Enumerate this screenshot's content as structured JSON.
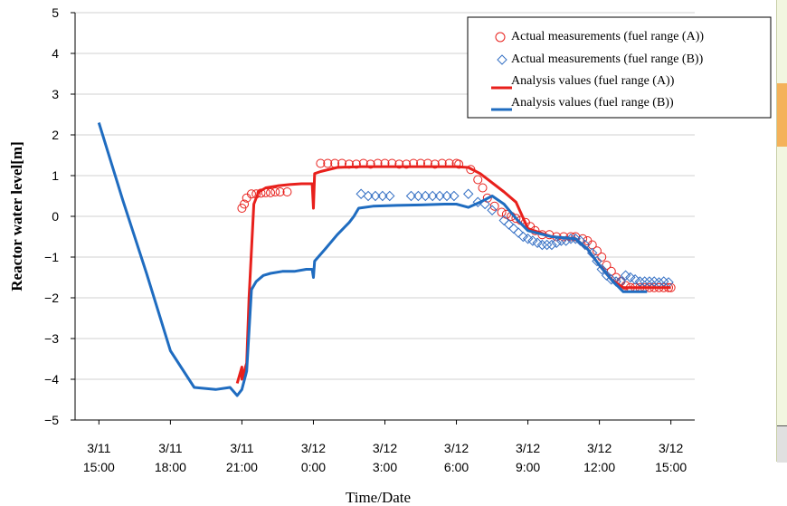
{
  "chart_data": {
    "type": "line",
    "title": "",
    "xlabel": "Time/Date",
    "ylabel": "Reactor water level[m]",
    "xlim": [
      "3/11 14:00",
      "3/12 16:00"
    ],
    "ylim": [
      -5,
      5
    ],
    "y_ticks": [
      5,
      4,
      3,
      2,
      1,
      0,
      -1,
      -2,
      -3,
      -4,
      -5
    ],
    "y_tick_labels": [
      "5",
      "4",
      "3",
      "2",
      "1",
      "0",
      "−1",
      "−2",
      "−3",
      "−4",
      "−5"
    ],
    "x_ticks": [
      {
        "date": "3/11",
        "time": "15:00",
        "hours": 1
      },
      {
        "date": "3/11",
        "time": "18:00",
        "hours": 4
      },
      {
        "date": "3/11",
        "time": "21:00",
        "hours": 7
      },
      {
        "date": "3/12",
        "time": "0:00",
        "hours": 10
      },
      {
        "date": "3/12",
        "time": "3:00",
        "hours": 13
      },
      {
        "date": "3/12",
        "time": "6:00",
        "hours": 16
      },
      {
        "date": "3/12",
        "time": "9:00",
        "hours": 19
      },
      {
        "date": "3/12",
        "time": "12:00",
        "hours": 22
      },
      {
        "date": "3/12",
        "time": "15:00",
        "hours": 25
      }
    ],
    "grid": "horizontal",
    "legend_position": "top-right",
    "series": [
      {
        "name": "Actual measurements (fuel range (A))",
        "kind": "scatter",
        "marker": "circle",
        "color": "#e8201c",
        "x": [
          7.0,
          7.1,
          7.2,
          7.4,
          7.6,
          7.8,
          8.0,
          8.2,
          8.4,
          8.6,
          8.9,
          10.3,
          10.6,
          10.9,
          11.2,
          11.5,
          11.8,
          12.1,
          12.4,
          12.7,
          13.0,
          13.3,
          13.6,
          13.9,
          14.2,
          14.5,
          14.8,
          15.1,
          15.4,
          15.7,
          16.0,
          16.1,
          16.6,
          16.9,
          17.1,
          17.3,
          17.6,
          17.9,
          18.1,
          18.3,
          18.5,
          18.7,
          18.9,
          19.1,
          19.3,
          19.6,
          19.9,
          20.2,
          20.5,
          20.8,
          21.0,
          21.3,
          21.5,
          21.7,
          21.9,
          22.1,
          22.3,
          22.5,
          22.7,
          22.9,
          23.1,
          23.3,
          23.5,
          23.7,
          23.9,
          24.1,
          24.3,
          24.5,
          24.7,
          24.9,
          25.0
        ],
        "y": [
          0.2,
          0.3,
          0.45,
          0.55,
          0.55,
          0.57,
          0.58,
          0.58,
          0.6,
          0.6,
          0.6,
          1.3,
          1.3,
          1.3,
          1.3,
          1.28,
          1.28,
          1.3,
          1.28,
          1.3,
          1.3,
          1.3,
          1.28,
          1.28,
          1.3,
          1.3,
          1.3,
          1.28,
          1.3,
          1.3,
          1.3,
          1.28,
          1.15,
          0.9,
          0.7,
          0.45,
          0.25,
          0.1,
          0.05,
          0.0,
          -0.05,
          -0.1,
          -0.15,
          -0.25,
          -0.35,
          -0.45,
          -0.45,
          -0.5,
          -0.5,
          -0.5,
          -0.5,
          -0.55,
          -0.6,
          -0.7,
          -0.85,
          -1.0,
          -1.2,
          -1.35,
          -1.5,
          -1.6,
          -1.7,
          -1.75,
          -1.75,
          -1.75,
          -1.75,
          -1.75,
          -1.75,
          -1.75,
          -1.75,
          -1.75,
          -1.75
        ]
      },
      {
        "name": "Actual measurements (fuel range (B))",
        "kind": "scatter",
        "marker": "diamond",
        "color": "#3570c4",
        "x": [
          12.0,
          12.3,
          12.6,
          12.9,
          13.2,
          14.1,
          14.4,
          14.7,
          15.0,
          15.3,
          15.6,
          15.9,
          16.5,
          16.9,
          17.2,
          17.5,
          18.0,
          18.2,
          18.4,
          18.6,
          18.8,
          19.0,
          19.2,
          19.4,
          19.6,
          19.8,
          20.0,
          20.2,
          20.4,
          20.6,
          20.8,
          21.0,
          21.2,
          21.4,
          21.7,
          21.9,
          22.1,
          22.3,
          22.5,
          22.7,
          22.9,
          23.1,
          23.3,
          23.5,
          23.7,
          23.9,
          24.1,
          24.3,
          24.5,
          24.7,
          24.9
        ],
        "y": [
          0.55,
          0.5,
          0.5,
          0.5,
          0.5,
          0.5,
          0.5,
          0.5,
          0.5,
          0.5,
          0.5,
          0.5,
          0.55,
          0.35,
          0.3,
          0.15,
          -0.1,
          -0.2,
          -0.3,
          -0.4,
          -0.5,
          -0.55,
          -0.6,
          -0.65,
          -0.7,
          -0.7,
          -0.7,
          -0.65,
          -0.6,
          -0.6,
          -0.55,
          -0.55,
          -0.6,
          -0.7,
          -0.9,
          -1.1,
          -1.3,
          -1.45,
          -1.55,
          -1.6,
          -1.6,
          -1.45,
          -1.5,
          -1.55,
          -1.6,
          -1.6,
          -1.6,
          -1.6,
          -1.62,
          -1.6,
          -1.62
        ]
      },
      {
        "name": "Analysis values (fuel range (A))",
        "kind": "line",
        "color": "#e8201c",
        "x": [
          6.8,
          7.0,
          7.0,
          7.2,
          7.3,
          7.5,
          7.7,
          8.0,
          8.5,
          9.0,
          9.5,
          9.95,
          10.0,
          10.05,
          10.3,
          11.0,
          12.0,
          13.0,
          14.0,
          15.0,
          16.0,
          16.5,
          17.0,
          18.0,
          18.5,
          19.0,
          20.0,
          21.0,
          21.5,
          22.0,
          22.5,
          23.0,
          24.0,
          25.0
        ],
        "y": [
          -4.1,
          -3.7,
          -4.0,
          -3.6,
          -2.0,
          0.3,
          0.6,
          0.7,
          0.75,
          0.78,
          0.8,
          0.8,
          0.2,
          1.05,
          1.1,
          1.2,
          1.22,
          1.22,
          1.22,
          1.22,
          1.22,
          1.2,
          1.05,
          0.6,
          0.35,
          -0.3,
          -0.5,
          -0.55,
          -0.8,
          -1.2,
          -1.55,
          -1.75,
          -1.75,
          -1.75
        ]
      },
      {
        "name": "Analysis values (fuel range (B))",
        "kind": "line",
        "color": "#1f6cc0",
        "x": [
          1.0,
          2.0,
          3.0,
          4.0,
          5.0,
          5.9,
          6.5,
          6.8,
          7.0,
          7.2,
          7.4,
          7.6,
          7.9,
          8.2,
          8.7,
          9.2,
          9.7,
          9.95,
          10.0,
          10.05,
          10.5,
          11.0,
          11.5,
          11.7,
          11.9,
          12.5,
          13.5,
          14.5,
          15.5,
          16.0,
          16.5,
          17.0,
          17.5,
          18.0,
          18.5,
          19.0,
          20.0,
          21.0,
          21.5,
          22.0,
          22.5,
          23.0,
          24.0
        ],
        "y": [
          2.3,
          0.4,
          -1.4,
          -3.3,
          -4.2,
          -4.25,
          -4.2,
          -4.4,
          -4.25,
          -3.8,
          -1.8,
          -1.6,
          -1.45,
          -1.4,
          -1.35,
          -1.35,
          -1.3,
          -1.3,
          -1.5,
          -1.1,
          -0.8,
          -0.45,
          -0.15,
          0.0,
          0.2,
          0.25,
          0.27,
          0.28,
          0.3,
          0.3,
          0.22,
          0.35,
          0.5,
          0.3,
          -0.05,
          -0.35,
          -0.5,
          -0.55,
          -0.8,
          -1.2,
          -1.55,
          -1.85,
          -1.85
        ]
      }
    ]
  }
}
